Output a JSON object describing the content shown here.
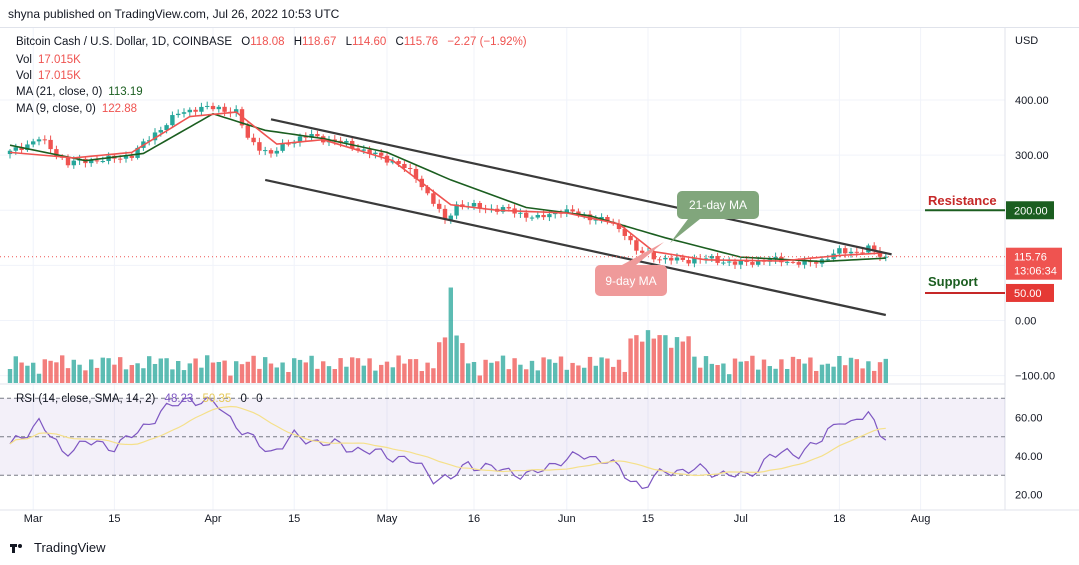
{
  "header": {
    "published": "shyna published on TradingView.com, Jul 26, 2022 10:53 UTC"
  },
  "legend": {
    "symbol": "Bitcoin Cash / U.S. Dollar, 1D, COINBASE",
    "open_label": "O",
    "open": "118.08",
    "high_label": "H",
    "high": "118.67",
    "low_label": "L",
    "low": "114.60",
    "close_label": "C",
    "close": "115.76",
    "change": "−2.27 (−1.92%)",
    "vol1_label": "Vol",
    "vol1": "17.015K",
    "vol2_label": "Vol",
    "vol2": "17.015K",
    "ma21_label": "MA (21, close, 0)",
    "ma21": "113.19",
    "ma9_label": "MA (9, close, 0)",
    "ma9": "122.88",
    "rsi_label": "RSI (14, close, SMA, 14, 2)",
    "rsi": "48.23",
    "rsi_sma": "50.35",
    "rsi_x1": "0",
    "rsi_x2": "0"
  },
  "annotations": {
    "ma21_bubble": "21-day MA",
    "ma9_bubble": "9-day MA",
    "resistance": "Resistance",
    "support": "Support"
  },
  "price_axis": {
    "currency": "USD",
    "ticks": [
      "400.00",
      "300.00",
      "0.00",
      "−100.00"
    ],
    "last_price": "115.76",
    "countdown": "13:06:34",
    "resistance_value": "200.00",
    "support_value": "50.00"
  },
  "rsi_axis": {
    "ticks": [
      "60.00",
      "40.00",
      "20.00"
    ]
  },
  "time_axis": {
    "labels": [
      "Mar",
      "15",
      "Apr",
      "15",
      "May",
      "16",
      "Jun",
      "15",
      "Jul",
      "18",
      "Aug"
    ]
  },
  "brand": "TradingView",
  "colors": {
    "up": "#26a69a",
    "down": "#ef5350",
    "ma21": "#1b5e20",
    "ma9": "#ef5350",
    "rsi": "#7e57c2",
    "rsi_sma": "#f5e08a",
    "channel": "#3a3a3a",
    "bubble_green": "#81a67c",
    "bubble_red": "#ef9a9a"
  },
  "chart_data": {
    "type": "candlestick",
    "title": "Bitcoin Cash / U.S. Dollar, 1D, COINBASE",
    "period": {
      "start": "2022-02-25",
      "end": "2022-07-26"
    },
    "price_range": [
      -100,
      470
    ],
    "close_anchors": [
      [
        "2022-02-25",
        305
      ],
      [
        "2022-03-02",
        330
      ],
      [
        "2022-03-07",
        285
      ],
      [
        "2022-03-10",
        290
      ],
      [
        "2022-03-14",
        292
      ],
      [
        "2022-03-18",
        300
      ],
      [
        "2022-03-22",
        340
      ],
      [
        "2022-03-26",
        375
      ],
      [
        "2022-03-29",
        385
      ],
      [
        "2022-04-02",
        385
      ],
      [
        "2022-04-05",
        378
      ],
      [
        "2022-04-07",
        330
      ],
      [
        "2022-04-11",
        300
      ],
      [
        "2022-04-14",
        325
      ],
      [
        "2022-04-18",
        335
      ],
      [
        "2022-04-24",
        320
      ],
      [
        "2022-04-29",
        300
      ],
      [
        "2022-05-03",
        285
      ],
      [
        "2022-05-06",
        260
      ],
      [
        "2022-05-09",
        215
      ],
      [
        "2022-05-11",
        180
      ],
      [
        "2022-05-13",
        210
      ],
      [
        "2022-05-17",
        205
      ],
      [
        "2022-05-22",
        200
      ],
      [
        "2022-05-27",
        185
      ],
      [
        "2022-05-31",
        200
      ],
      [
        "2022-06-04",
        190
      ],
      [
        "2022-06-08",
        180
      ],
      [
        "2022-06-11",
        160
      ],
      [
        "2022-06-13",
        125
      ],
      [
        "2022-06-15",
        120
      ],
      [
        "2022-06-18",
        110
      ],
      [
        "2022-06-22",
        110
      ],
      [
        "2022-06-26",
        112
      ],
      [
        "2022-06-30",
        103
      ],
      [
        "2022-07-04",
        108
      ],
      [
        "2022-07-08",
        110
      ],
      [
        "2022-07-12",
        102
      ],
      [
        "2022-07-15",
        110
      ],
      [
        "2022-07-18",
        125
      ],
      [
        "2022-07-21",
        125
      ],
      [
        "2022-07-23",
        130
      ],
      [
        "2022-07-25",
        118
      ],
      [
        "2022-07-26",
        115.76
      ]
    ],
    "rsi_anchors": [
      [
        "2022-02-25",
        45
      ],
      [
        "2022-03-02",
        58
      ],
      [
        "2022-03-06",
        42
      ],
      [
        "2022-03-10",
        47
      ],
      [
        "2022-03-15",
        45
      ],
      [
        "2022-03-19",
        52
      ],
      [
        "2022-03-23",
        63
      ],
      [
        "2022-03-28",
        70
      ],
      [
        "2022-04-02",
        66
      ],
      [
        "2022-04-07",
        50
      ],
      [
        "2022-04-11",
        42
      ],
      [
        "2022-04-15",
        50
      ],
      [
        "2022-04-20",
        47
      ],
      [
        "2022-04-25",
        44
      ],
      [
        "2022-04-30",
        41
      ],
      [
        "2022-05-05",
        38
      ],
      [
        "2022-05-09",
        29
      ],
      [
        "2022-05-12",
        28
      ],
      [
        "2022-05-15",
        36
      ],
      [
        "2022-05-20",
        33
      ],
      [
        "2022-05-26",
        30
      ],
      [
        "2022-05-31",
        38
      ],
      [
        "2022-06-04",
        40
      ],
      [
        "2022-06-08",
        38
      ],
      [
        "2022-06-11",
        30
      ],
      [
        "2022-06-14",
        24
      ],
      [
        "2022-06-18",
        32
      ],
      [
        "2022-06-23",
        33
      ],
      [
        "2022-06-28",
        31
      ],
      [
        "2022-07-02",
        29
      ],
      [
        "2022-07-06",
        40
      ],
      [
        "2022-07-11",
        42
      ],
      [
        "2022-07-15",
        48
      ],
      [
        "2022-07-18",
        60
      ],
      [
        "2022-07-20",
        56
      ],
      [
        "2022-07-23",
        62
      ],
      [
        "2022-07-26",
        48.23
      ]
    ],
    "ma21_anchors": [
      [
        "2022-02-25",
        318
      ],
      [
        "2022-03-10",
        290
      ],
      [
        "2022-03-20",
        303
      ],
      [
        "2022-04-01",
        375
      ],
      [
        "2022-04-10",
        345
      ],
      [
        "2022-04-20",
        330
      ],
      [
        "2022-05-01",
        305
      ],
      [
        "2022-05-12",
        255
      ],
      [
        "2022-05-25",
        205
      ],
      [
        "2022-06-05",
        190
      ],
      [
        "2022-06-18",
        150
      ],
      [
        "2022-07-01",
        115
      ],
      [
        "2022-07-15",
        107
      ],
      [
        "2022-07-26",
        113.19
      ]
    ],
    "ma9_anchors": [
      [
        "2022-02-25",
        305
      ],
      [
        "2022-03-08",
        295
      ],
      [
        "2022-03-18",
        305
      ],
      [
        "2022-03-28",
        370
      ],
      [
        "2022-04-05",
        378
      ],
      [
        "2022-04-12",
        320
      ],
      [
        "2022-04-20",
        328
      ],
      [
        "2022-05-02",
        290
      ],
      [
        "2022-05-12",
        210
      ],
      [
        "2022-05-20",
        200
      ],
      [
        "2022-06-01",
        195
      ],
      [
        "2022-06-10",
        175
      ],
      [
        "2022-06-16",
        125
      ],
      [
        "2022-06-25",
        110
      ],
      [
        "2022-07-08",
        108
      ],
      [
        "2022-07-18",
        118
      ],
      [
        "2022-07-26",
        122.88
      ]
    ],
    "channel_upper": [
      [
        "2022-04-11",
        365
      ],
      [
        "2022-07-27",
        120
      ]
    ],
    "channel_lower": [
      [
        "2022-04-10",
        255
      ],
      [
        "2022-07-26",
        10
      ]
    ],
    "resistance_level": 200,
    "support_level": 50,
    "rsi_range": [
      10,
      70
    ],
    "rsi_bands": [
      30,
      50,
      70
    ]
  }
}
